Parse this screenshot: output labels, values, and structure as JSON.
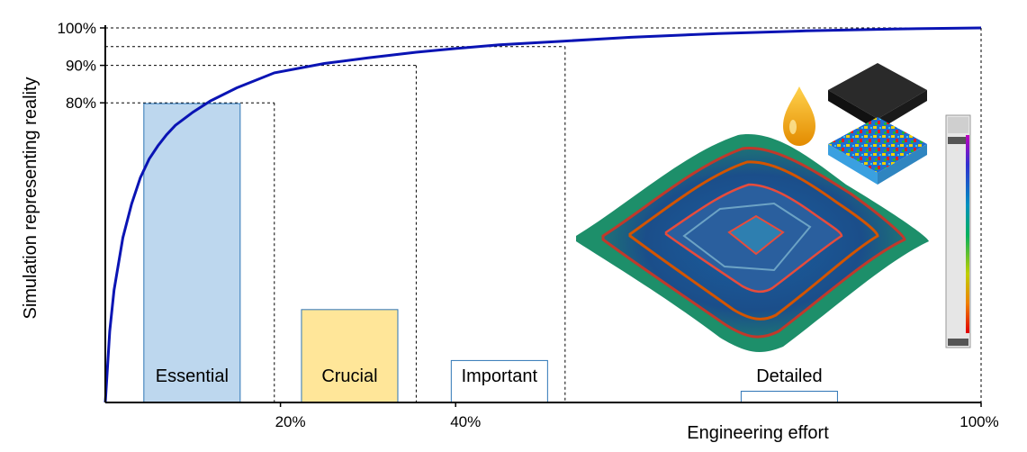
{
  "chart_data": {
    "type": "line",
    "title": "",
    "xlabel": "Engineering effort",
    "ylabel": "Simulation representing reality",
    "xlim": [
      0,
      100
    ],
    "ylim": [
      0,
      100
    ],
    "x_ticks": [
      {
        "value": 20,
        "label": "20%"
      },
      {
        "value": 40,
        "label": "40%"
      },
      {
        "value": 100,
        "label": "100%"
      }
    ],
    "y_ticks": [
      {
        "value": 80,
        "label": "80%"
      },
      {
        "value": 90,
        "label": "90%"
      },
      {
        "value": 100,
        "label": "100%"
      }
    ],
    "reference_lines": [
      {
        "x": 19.3,
        "y": 80
      },
      {
        "x": 35.5,
        "y": 90
      },
      {
        "x": 52.5,
        "y": 95
      }
    ],
    "series": [
      {
        "color": "#0a14b4",
        "x": [
          0,
          0.5,
          1,
          2,
          3,
          4,
          5,
          6,
          7,
          8,
          10,
          12,
          15,
          19.3,
          25,
          30,
          35.5,
          40,
          45,
          52.5,
          60,
          70,
          80,
          90,
          100
        ],
        "y": [
          0,
          19,
          30,
          44,
          53,
          60,
          65,
          68.5,
          71.5,
          74,
          77.5,
          80.5,
          84,
          88,
          90.5,
          92,
          93.5,
          94.5,
          95.5,
          96.5,
          97.5,
          98.5,
          99.2,
          99.7,
          100
        ]
      }
    ],
    "categories": [
      {
        "label": "Essential",
        "x_start": 4.4,
        "x_end": 15.4,
        "height": 79.8,
        "fill": "#bdd7ee",
        "stroke": "#2e75b6"
      },
      {
        "label": "Crucial",
        "x_start": 22.4,
        "x_end": 33.4,
        "height": 24.8,
        "fill": "#ffe699",
        "stroke": "#2e75b6"
      },
      {
        "label": "Important",
        "x_start": 39.5,
        "x_end": 50.5,
        "height": 11.2,
        "fill": "#ffffff",
        "stroke": "#2e75b6"
      },
      {
        "label": "Detailed",
        "x_start": 72.6,
        "x_end": 83.6,
        "height": 3.0,
        "fill": "#ffffff",
        "stroke": "#2e75b6"
      }
    ]
  },
  "colors": {
    "curve": "#0a14b4",
    "essential": "#bdd7ee",
    "crucial": "#ffe699",
    "bar_border": "#2e75b6"
  },
  "illustrations": {
    "sheet": "formed-sheet-metal-simulation",
    "drop": "lubricant-drop-icon",
    "block": "surface-texture-block",
    "scale": "colour-scale-bar"
  }
}
